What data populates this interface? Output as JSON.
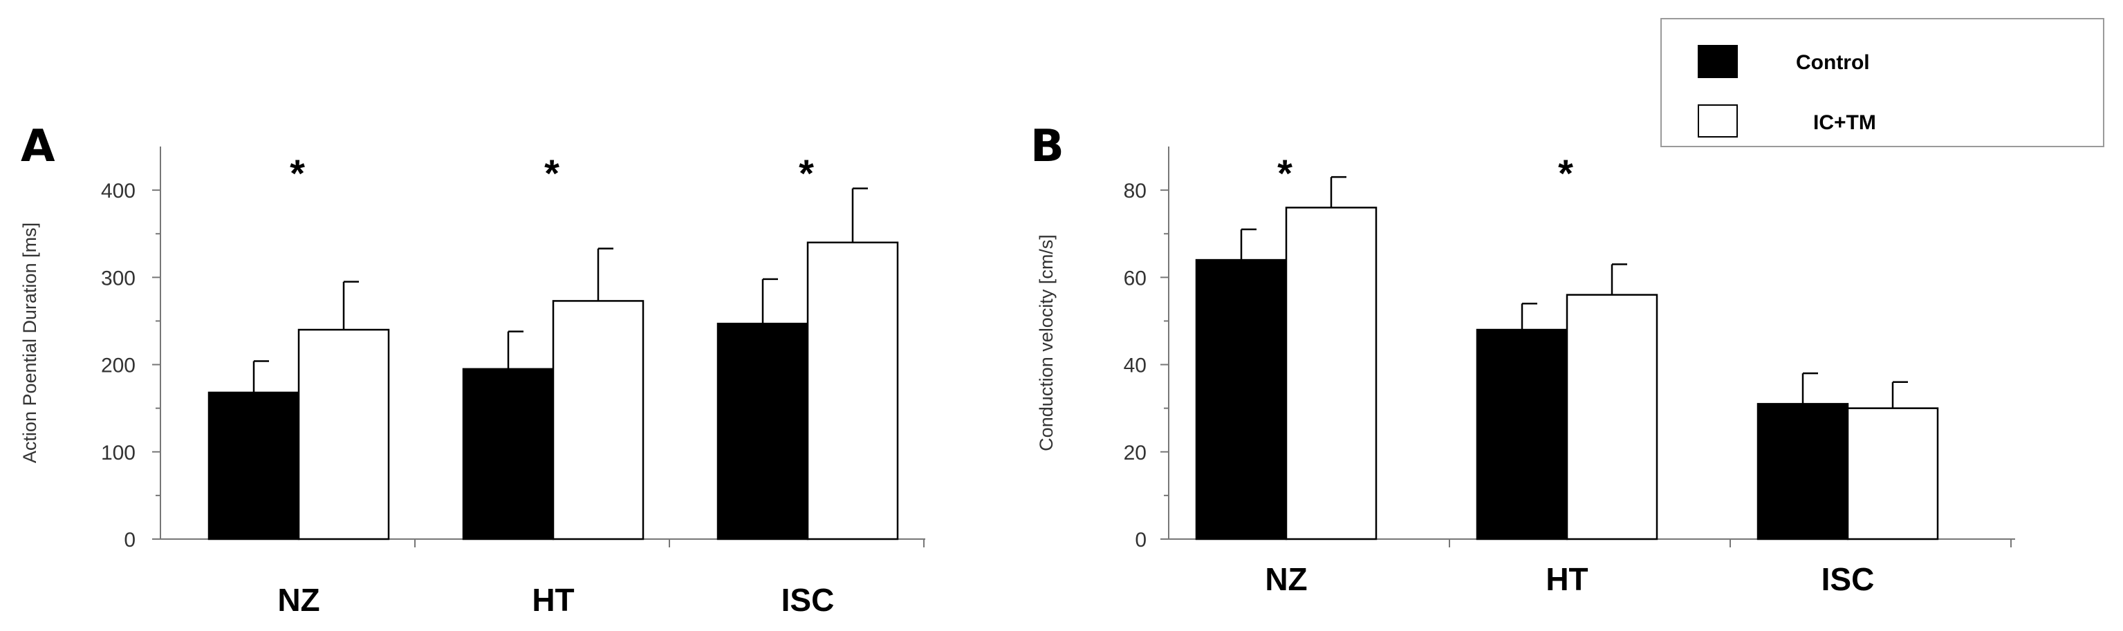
{
  "legend": {
    "items": [
      {
        "label": "Control",
        "fill": "#000000"
      },
      {
        "label": "IC+TM",
        "fill": "#ffffff"
      }
    ]
  },
  "chart_data": [
    {
      "type": "bar",
      "panel": "A",
      "categories": [
        "NZ",
        "HT",
        "ISC"
      ],
      "ylabel": "Action Poential Duration [ms]",
      "ylim": [
        0,
        450
      ],
      "yticks": [
        0,
        100,
        200,
        300,
        400
      ],
      "series": [
        {
          "name": "Control",
          "values": [
            168,
            195,
            247
          ],
          "errors": [
            36,
            43,
            51
          ]
        },
        {
          "name": "IC+TM",
          "values": [
            240,
            273,
            340
          ],
          "errors": [
            55,
            60,
            62
          ]
        }
      ],
      "significance": [
        "*",
        "*",
        "*"
      ]
    },
    {
      "type": "bar",
      "panel": "B",
      "categories": [
        "NZ",
        "HT",
        "ISC"
      ],
      "ylabel": "Conduction velocity [cm/s]",
      "ylim": [
        0,
        90
      ],
      "yticks": [
        0,
        20,
        40,
        60,
        80
      ],
      "series": [
        {
          "name": "Control",
          "values": [
            64,
            48,
            31
          ],
          "errors": [
            7,
            6,
            7
          ]
        },
        {
          "name": "IC+TM",
          "values": [
            76,
            56,
            30
          ],
          "errors": [
            7,
            7,
            6
          ]
        }
      ],
      "significance": [
        "*",
        "*",
        ""
      ]
    }
  ]
}
